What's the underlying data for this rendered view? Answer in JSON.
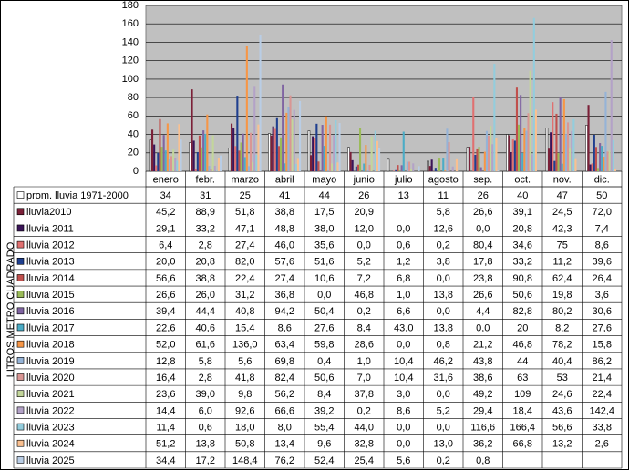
{
  "chart_data": {
    "type": "bar",
    "y_label": "LITROS METRO CUADRADO",
    "categories": [
      "enero",
      "febr.",
      "marzo",
      "abril",
      "mayo",
      "junio",
      "julio",
      "agosto",
      "sep.",
      "oct.",
      "nov.",
      "dic."
    ],
    "ylim": [
      0,
      180
    ],
    "yticks": [
      0,
      20,
      40,
      60,
      80,
      100,
      120,
      140,
      160,
      180
    ],
    "grid": true,
    "series": [
      {
        "name": "prom. lluvia 1971-2000",
        "color": "#ffffff",
        "values": [
          34,
          31,
          25,
          41,
          44,
          26,
          13,
          11,
          26,
          40,
          47,
          50
        ]
      },
      {
        "name": "lluvia2010",
        "color": "#7b2038",
        "values": [
          45.2,
          88.9,
          51.8,
          38.8,
          17.5,
          20.9,
          null,
          5.8,
          26.6,
          39.1,
          24.5,
          72.0
        ],
        "value_labels": [
          "45,2",
          "88,9",
          "51,8",
          "38,8",
          "17,5",
          "20,9",
          null,
          "5,8",
          "26,6",
          "39,1",
          "24,5",
          "72,0"
        ]
      },
      {
        "name": "lluvia 2011",
        "color": "#3a1458",
        "values": [
          29.1,
          33.2,
          47.1,
          48.8,
          38.0,
          12.0,
          0.0,
          12.6,
          0.0,
          20.8,
          42.3,
          7.4
        ],
        "value_labels": [
          "29,1",
          "33,2",
          "47,1",
          "48,8",
          "38,0",
          "12,0",
          "0,0",
          "12,6",
          "0,0",
          "20,8",
          "42,3",
          "7,4"
        ]
      },
      {
        "name": "lluvia 2012",
        "color": "#e07070",
        "values": [
          6.4,
          2.8,
          27.4,
          46.0,
          35.6,
          0.0,
          0.6,
          0.2,
          80.4,
          34.6,
          75,
          8.6
        ],
        "value_labels": [
          "6,4",
          "2,8",
          "27,4",
          "46,0",
          "35,6",
          "0,0",
          "0,6",
          "0,2",
          "80,4",
          "34,6",
          "75",
          "8,6"
        ]
      },
      {
        "name": "lluvia 2013",
        "color": "#1f3f8f",
        "values": [
          20.0,
          20.8,
          82.0,
          57.6,
          51.6,
          5.2,
          1.2,
          3.8,
          17.8,
          33.2,
          11.2,
          39.6
        ],
        "value_labels": [
          "20,0",
          "20,8",
          "82,0",
          "57,6",
          "51,6",
          "5,2",
          "1,2",
          "3,8",
          "17,8",
          "33,2",
          "11,2",
          "39,6"
        ]
      },
      {
        "name": "lluvia 2014",
        "color": "#c0504d",
        "values": [
          56.6,
          38.8,
          22.4,
          27.4,
          10.6,
          7.2,
          6.8,
          0.0,
          23.8,
          90.8,
          62.4,
          26.4
        ],
        "value_labels": [
          "56,6",
          "38,8",
          "22,4",
          "27,4",
          "10,6",
          "7,2",
          "6,8",
          "0,0",
          "23,8",
          "90,8",
          "62,4",
          "26,4"
        ]
      },
      {
        "name": "lluvia 2015",
        "color": "#9bbb59",
        "values": [
          26.6,
          26.0,
          31.2,
          36.8,
          0.0,
          46.8,
          1.0,
          13.8,
          26.6,
          50.6,
          19.8,
          3.6
        ],
        "value_labels": [
          "26,6",
          "26,0",
          "31,2",
          "36,8",
          "0,0",
          "46,8",
          "1,0",
          "13,8",
          "26,6",
          "50,6",
          "19,8",
          "3,6"
        ]
      },
      {
        "name": "lluvia 2016",
        "color": "#8064a2",
        "values": [
          39.4,
          44.4,
          40.8,
          94.2,
          50.4,
          0.2,
          6.6,
          0.0,
          4.4,
          82.8,
          80.2,
          30.6
        ],
        "value_labels": [
          "39,4",
          "44,4",
          "40,8",
          "94,2",
          "50,4",
          "0,2",
          "6,6",
          "0,0",
          "4,4",
          "82,8",
          "80,2",
          "30,6"
        ]
      },
      {
        "name": "lluvia 2017",
        "color": "#4bacc6",
        "values": [
          22.6,
          40.6,
          15.4,
          8.6,
          27.6,
          8.4,
          43.0,
          13.8,
          0.0,
          20,
          8.2,
          27.6
        ],
        "value_labels": [
          "22,6",
          "40,6",
          "15,4",
          "8,6",
          "27,6",
          "8,4",
          "43,0",
          "13,8",
          "0,0",
          "20",
          "8,2",
          "27,6"
        ]
      },
      {
        "name": "lluvia 2018",
        "color": "#f79646",
        "values": [
          52.0,
          61.6,
          136.0,
          63.4,
          59.8,
          28.6,
          0.0,
          0.8,
          21.2,
          46.8,
          78.2,
          15.8
        ],
        "value_labels": [
          "52,0",
          "61,6",
          "136,0",
          "63,4",
          "59,8",
          "28,6",
          "0,0",
          "0,8",
          "21,2",
          "46,8",
          "78,2",
          "15,8"
        ]
      },
      {
        "name": "lluvia 2019",
        "color": "#95b3d7",
        "values": [
          12.8,
          5.8,
          5.6,
          69.8,
          0.4,
          1.0,
          10.4,
          46.2,
          43.8,
          44,
          40.4,
          86.2
        ],
        "value_labels": [
          "12,8",
          "5,8",
          "5,6",
          "69,8",
          "0,4",
          "1,0",
          "10,4",
          "46,2",
          "43,8",
          "44",
          "40,4",
          "86,2"
        ]
      },
      {
        "name": "lluvia 2020",
        "color": "#d99694",
        "values": [
          16.4,
          2.8,
          41.8,
          82.4,
          50.6,
          7.0,
          10.4,
          31.6,
          38.6,
          63,
          53,
          21.4
        ],
        "value_labels": [
          "16,4",
          "2,8",
          "41,8",
          "82,4",
          "50,6",
          "7,0",
          "10,4",
          "31,6",
          "38,6",
          "63",
          "53",
          "21,4"
        ]
      },
      {
        "name": "lluvia 2021",
        "color": "#c3d69b",
        "values": [
          23.6,
          39.0,
          9.8,
          56.2,
          8.4,
          37.8,
          3.0,
          0.0,
          49.2,
          109,
          24.6,
          22.4
        ],
        "value_labels": [
          "23,6",
          "39,0",
          "9,8",
          "56,2",
          "8,4",
          "37,8",
          "3,0",
          "0,0",
          "49,2",
          "109",
          "24,6",
          "22,4"
        ]
      },
      {
        "name": "lluvia 2022",
        "color": "#b3a2c7",
        "values": [
          14.4,
          6.0,
          92.6,
          66.6,
          39.2,
          0.2,
          8.6,
          5.2,
          29.4,
          18.4,
          43.6,
          142.4
        ],
        "value_labels": [
          "14,4",
          "6,0",
          "92,6",
          "66,6",
          "39,2",
          "0,2",
          "8,6",
          "5,2",
          "29,4",
          "18,4",
          "43,6",
          "142,4"
        ]
      },
      {
        "name": "lluvia 2023",
        "color": "#93cddd",
        "values": [
          11.4,
          0.6,
          18.0,
          8.0,
          55.4,
          44.0,
          0.0,
          0.0,
          116.6,
          166.4,
          56.6,
          33.8
        ],
        "value_labels": [
          "11,4",
          "0,6",
          "18,0",
          "8,0",
          "55,4",
          "44,0",
          "0,0",
          "0,0",
          "116,6",
          "166,4",
          "56,6",
          "33,8"
        ]
      },
      {
        "name": "lluvia 2024",
        "color": "#fac090",
        "values": [
          51.2,
          13.8,
          50.8,
          13.4,
          9.6,
          32.8,
          0.0,
          13.0,
          36.2,
          66.8,
          13.2,
          2.6
        ],
        "value_labels": [
          "51,2",
          "13,8",
          "50,8",
          "13,4",
          "9,6",
          "32,8",
          "0,0",
          "13,0",
          "36,2",
          "66,8",
          "13,2",
          "2,6"
        ]
      },
      {
        "name": "lluvia 2025",
        "color": "#b9cde5",
        "values": [
          34.4,
          17.2,
          148.4,
          76.2,
          52.4,
          25.4,
          5.6,
          0.2,
          0.8,
          null,
          null,
          null
        ],
        "value_labels": [
          "34,4",
          "17,2",
          "148,4",
          "76,2",
          "52,4",
          "25,4",
          "5,6",
          "0,2",
          "0,8",
          null,
          null,
          null
        ]
      }
    ]
  }
}
